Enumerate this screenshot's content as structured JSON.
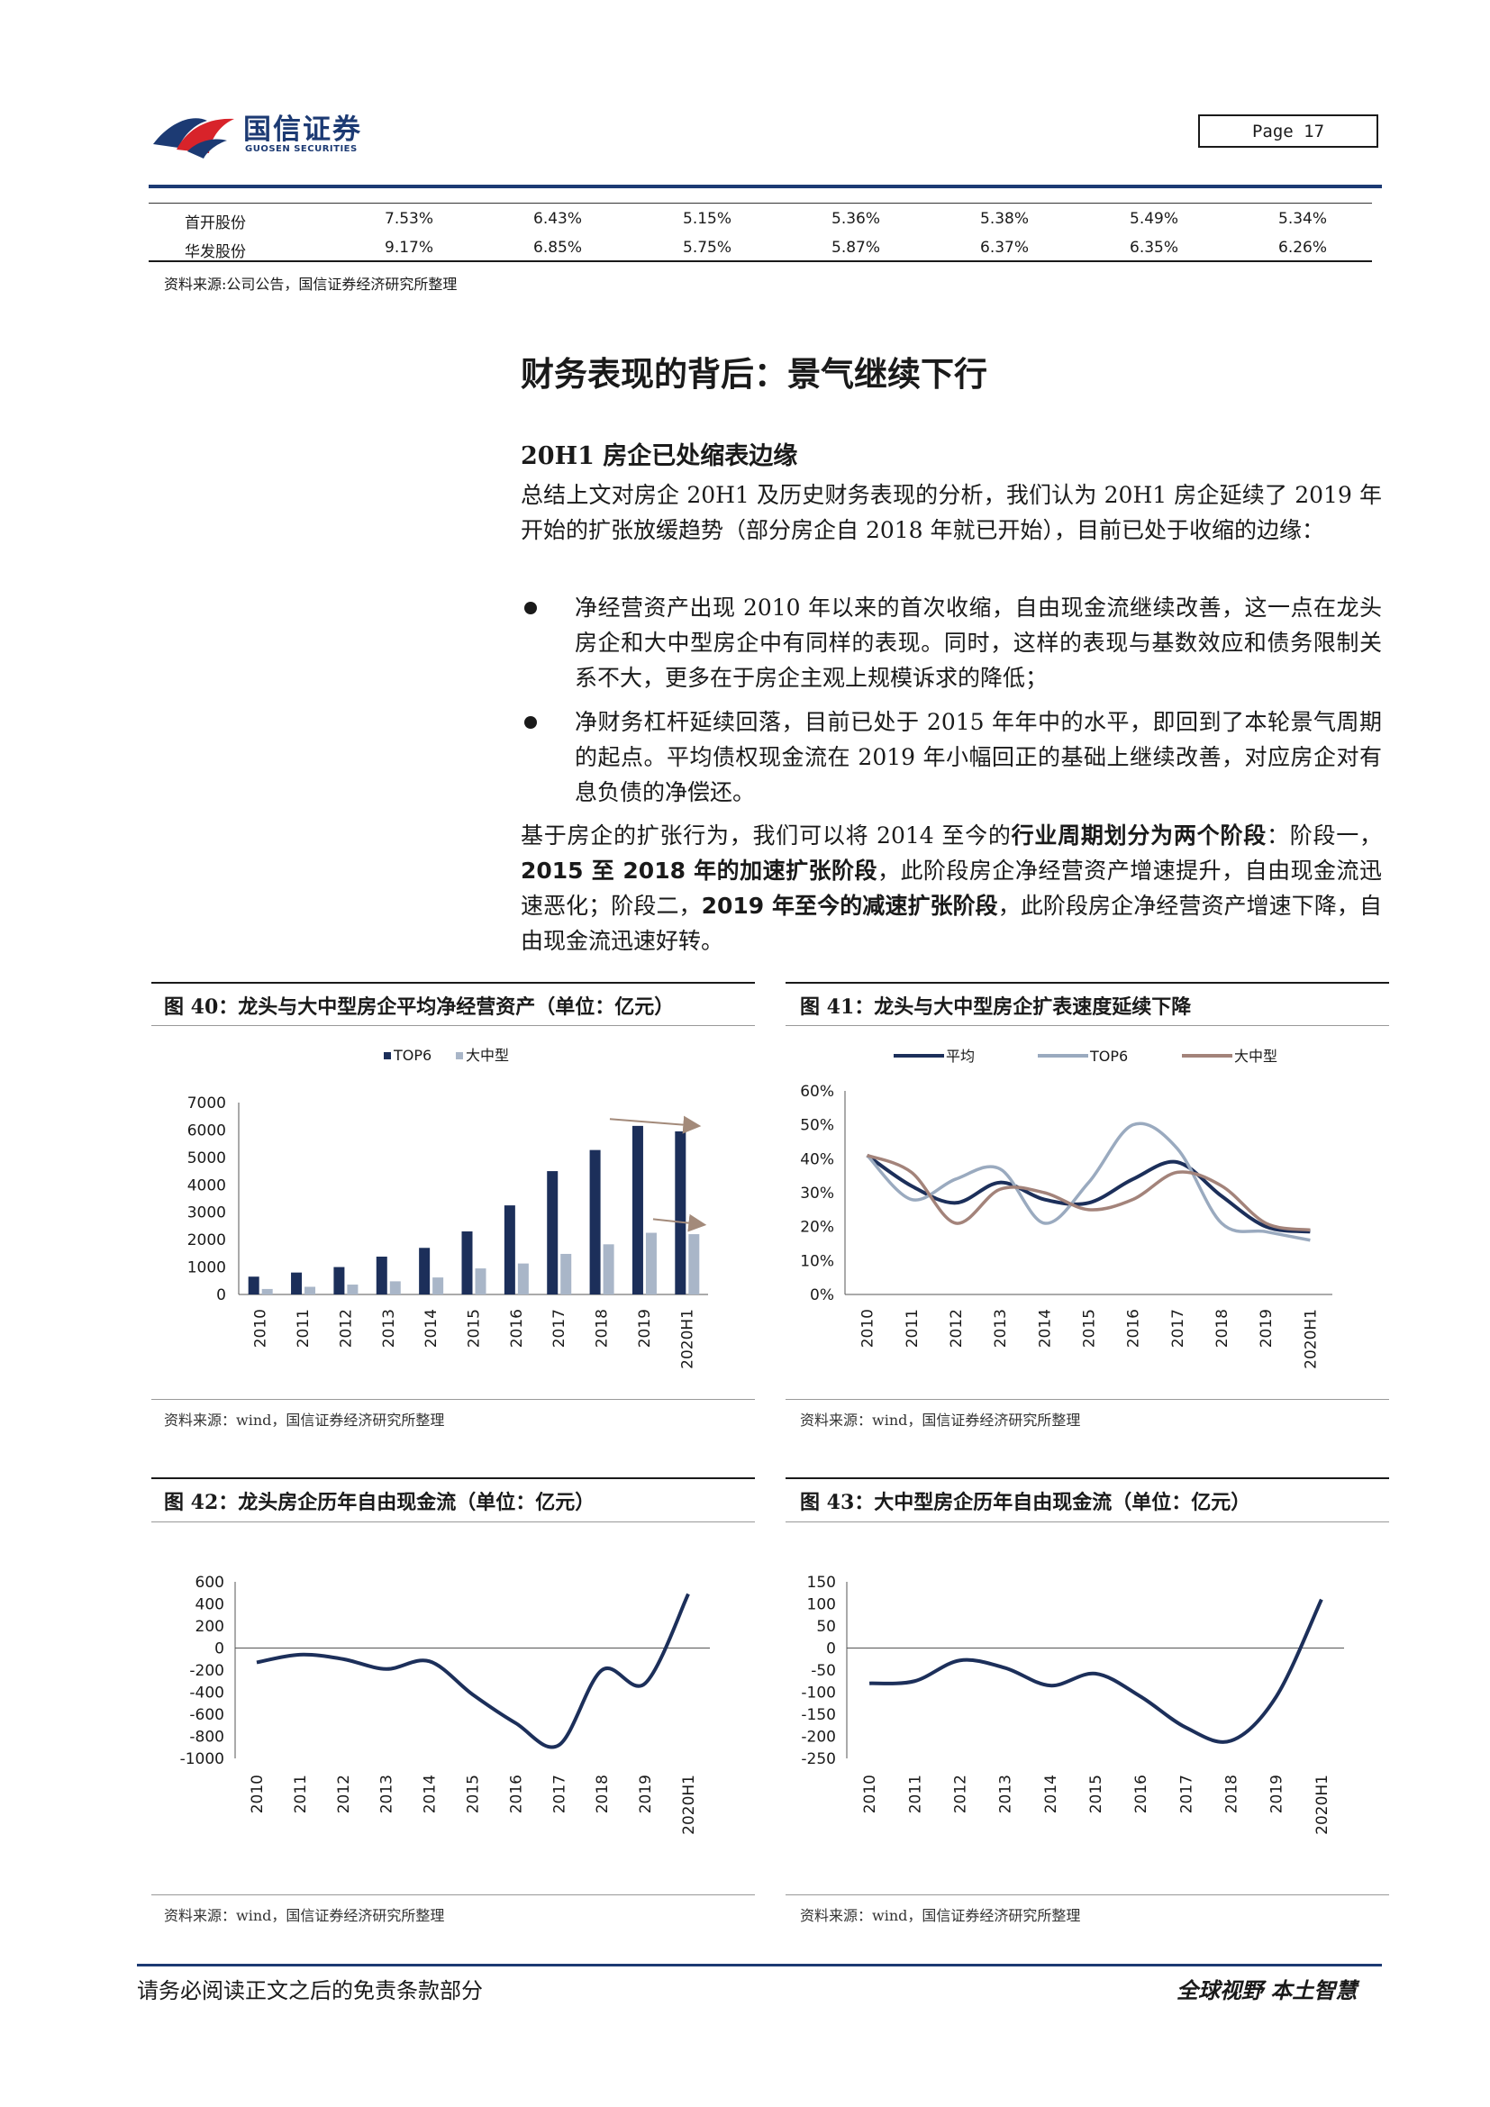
{
  "header": {
    "logo_cn": "国信证券",
    "logo_en": "GUOSEN SECURITIES",
    "page_label": "Page 17"
  },
  "table": {
    "rows": [
      {
        "name": "首开股份",
        "values": [
          "7.53%",
          "6.43%",
          "5.15%",
          "5.36%",
          "5.38%",
          "5.49%",
          "5.34%"
        ]
      },
      {
        "name": "华发股份",
        "values": [
          "9.17%",
          "6.85%",
          "5.75%",
          "5.87%",
          "6.37%",
          "6.35%",
          "6.26%"
        ]
      }
    ],
    "source": "资料来源:公司公告，国信证券经济研究所整理"
  },
  "section_title": "财务表现的背后：景气继续下行",
  "sub_title": "20H1 房企已处缩表边缘",
  "para1": "总结上文对房企 20H1 及历史财务表现的分析，我们认为 20H1 房企延续了 2019 年开始的扩张放缓趋势（部分房企自 2018 年就已开始），目前已处于收缩的边缘：",
  "bullets": [
    "净经营资产出现 2010 年以来的首次收缩，自由现金流继续改善，这一点在龙头房企和大中型房企中有同样的表现。同时，这样的表现与基数效应和债务限制关系不大，更多在于房企主观上规模诉求的降低；",
    "净财务杠杆延续回落，目前已处于 2015 年年中的水平，即回到了本轮景气周期的起点。平均债权现金流在 2019 年小幅回正的基础上继续改善，对应房企对有息负债的净偿还。"
  ],
  "para2": {
    "p1": "基于房企的扩张行为，我们可以将 2014 至今的",
    "b1": "行业周期划分为两个阶段",
    "p2": "：阶段一，",
    "b2": "2015 至 2018 年的加速扩张阶段",
    "p3": "，此阶段房企净经营资产增速提升，自由现金流迅速恶化；阶段二，",
    "b3": "2019 年至今的减速扩张阶段",
    "p4": "，此阶段房企净经营资产增速下降，自由现金流迅速好转。"
  },
  "figures": {
    "fig40": {
      "caption": "图 40：龙头与大中型房企平均净经营资产（单位：亿元）",
      "source": "资料来源：wind，国信证券经济研究所整理"
    },
    "fig41": {
      "caption": "图 41：龙头与大中型房企扩表速度延续下降",
      "source": "资料来源：wind，国信证券经济研究所整理"
    },
    "fig42": {
      "caption": "图 42：龙头房企历年自由现金流（单位：亿元）",
      "source": "资料来源：wind，国信证券经济研究所整理"
    },
    "fig43": {
      "caption": "图 43：大中型房企历年自由现金流（单位：亿元）",
      "source": "资料来源：wind，国信证券经济研究所整理"
    }
  },
  "chart_data": [
    {
      "type": "bar",
      "categories": [
        "2010",
        "2011",
        "2012",
        "2013",
        "2014",
        "2015",
        "2016",
        "2017",
        "2018",
        "2019",
        "2020H1"
      ],
      "series": [
        {
          "name": "TOP6",
          "color": "#1c2f5a",
          "values": [
            650,
            800,
            1000,
            1380,
            1700,
            2300,
            3250,
            4500,
            5270,
            6150,
            5950
          ]
        },
        {
          "name": "大中型",
          "color": "#a9b6c8",
          "values": [
            200,
            280,
            360,
            480,
            620,
            950,
            1130,
            1480,
            1830,
            2250,
            2200
          ]
        }
      ],
      "ylim": [
        0,
        7000
      ],
      "yticks": [
        0,
        1000,
        2000,
        3000,
        4000,
        5000,
        6000,
        7000
      ],
      "legend": "top",
      "annotations": "arrows",
      "arrow_color": "#a38a7a"
    },
    {
      "type": "line",
      "categories": [
        "2010",
        "2011",
        "2012",
        "2013",
        "2014",
        "2015",
        "2016",
        "2017",
        "2018",
        "2019",
        "2020H1"
      ],
      "series": [
        {
          "name": "平均",
          "color": "#1c2f5a",
          "values": [
            0.41,
            0.32,
            0.27,
            0.33,
            0.28,
            0.27,
            0.34,
            0.39,
            0.29,
            0.2,
            0.185
          ]
        },
        {
          "name": "TOP6",
          "color": "#9aaabf",
          "values": [
            0.41,
            0.28,
            0.34,
            0.37,
            0.21,
            0.33,
            0.5,
            0.43,
            0.21,
            0.185,
            0.16
          ]
        },
        {
          "name": "大中型",
          "color": "#a3837a",
          "values": [
            0.41,
            0.36,
            0.21,
            0.31,
            0.3,
            0.25,
            0.28,
            0.36,
            0.32,
            0.21,
            0.19
          ]
        }
      ],
      "ylim": [
        0,
        0.6
      ],
      "yticks": [
        "0%",
        "10%",
        "20%",
        "30%",
        "40%",
        "50%",
        "60%"
      ],
      "legend": "top"
    },
    {
      "type": "line",
      "categories": [
        "2010",
        "2011",
        "2012",
        "2013",
        "2014",
        "2015",
        "2016",
        "2017",
        "2018",
        "2019",
        "2020H1"
      ],
      "series": [
        {
          "color": "#1c2f5a",
          "values": [
            -130,
            -60,
            -100,
            -190,
            -120,
            -420,
            -680,
            -880,
            -200,
            -320,
            490
          ]
        }
      ],
      "ylim": [
        -1000,
        600
      ],
      "yticks": [
        -1000,
        -800,
        -600,
        -400,
        -200,
        0,
        200,
        400,
        600
      ]
    },
    {
      "type": "line",
      "categories": [
        "2010",
        "2011",
        "2012",
        "2013",
        "2014",
        "2015",
        "2016",
        "2017",
        "2018",
        "2019",
        "2020H1"
      ],
      "series": [
        {
          "color": "#1c2f5a",
          "values": [
            -80,
            -75,
            -28,
            -45,
            -85,
            -58,
            -110,
            -180,
            -210,
            -110,
            110
          ]
        }
      ],
      "ylim": [
        -250,
        150
      ],
      "yticks": [
        -250,
        -200,
        -150,
        -100,
        -50,
        0,
        50,
        100,
        150
      ]
    }
  ],
  "footer": {
    "left": "请务必阅读正文之后的免责条款部分",
    "right": "全球视野 本土智慧"
  }
}
